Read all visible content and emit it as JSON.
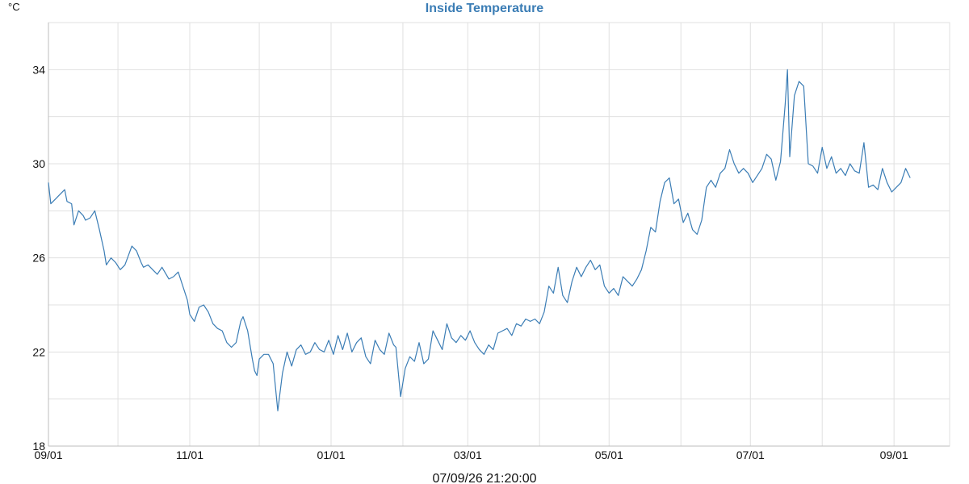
{
  "chart_data": {
    "type": "line",
    "title": "Inside Temperature",
    "ylabel": "°C",
    "footer": "07/09/26 21:20:00",
    "ylim": [
      18,
      36
    ],
    "yticks": [
      18,
      22,
      26,
      30,
      34
    ],
    "xlim": [
      "2006-09-01",
      "2007-09-25"
    ],
    "xticks": [
      {
        "label": "09/01",
        "date": "2006-09-01"
      },
      {
        "label": "11/01",
        "date": "2006-11-01"
      },
      {
        "label": "01/01",
        "date": "2007-01-01"
      },
      {
        "label": "03/01",
        "date": "2007-03-01"
      },
      {
        "label": "05/01",
        "date": "2007-05-01"
      },
      {
        "label": "07/01",
        "date": "2007-07-01"
      },
      {
        "label": "09/01",
        "date": "2007-09-01"
      }
    ],
    "grid": true,
    "colors": {
      "line": "#3b7db5",
      "title": "#3b7db5",
      "grid": "#e0e0e0"
    },
    "series": [
      {
        "x": [
          "2006-09-01",
          "2006-09-02",
          "2006-09-04",
          "2006-09-06",
          "2006-09-08",
          "2006-09-09",
          "2006-09-11",
          "2006-09-12",
          "2006-09-14",
          "2006-09-16",
          "2006-09-17",
          "2006-09-19",
          "2006-09-21",
          "2006-09-23",
          "2006-09-25",
          "2006-09-26",
          "2006-09-28",
          "2006-09-30",
          "2006-10-02",
          "2006-10-04",
          "2006-10-07",
          "2006-10-09",
          "2006-10-11",
          "2006-10-12",
          "2006-10-14",
          "2006-10-16",
          "2006-10-18",
          "2006-10-20",
          "2006-10-23",
          "2006-10-25",
          "2006-10-27",
          "2006-10-29",
          "2006-10-31",
          "2006-11-01",
          "2006-11-03",
          "2006-11-05",
          "2006-11-07",
          "2006-11-09",
          "2006-11-11",
          "2006-11-13",
          "2006-11-15",
          "2006-11-17",
          "2006-11-19",
          "2006-11-21",
          "2006-11-23",
          "2006-11-24",
          "2006-11-26",
          "2006-11-28",
          "2006-11-29",
          "2006-11-30",
          "2006-12-01",
          "2006-12-03",
          "2006-12-05",
          "2006-12-07",
          "2006-12-09",
          "2006-12-11",
          "2006-12-13",
          "2006-12-15",
          "2006-12-17",
          "2006-12-19",
          "2006-12-21",
          "2006-12-23",
          "2006-12-25",
          "2006-12-27",
          "2006-12-29",
          "2006-12-31",
          "2007-01-02",
          "2007-01-04",
          "2007-01-06",
          "2007-01-08",
          "2007-01-10",
          "2007-01-12",
          "2007-01-14",
          "2007-01-16",
          "2007-01-18",
          "2007-01-20",
          "2007-01-22",
          "2007-01-24",
          "2007-01-26",
          "2007-01-28",
          "2007-01-29",
          "2007-01-31",
          "2007-02-02",
          "2007-02-04",
          "2007-02-06",
          "2007-02-08",
          "2007-02-10",
          "2007-02-12",
          "2007-02-14",
          "2007-02-16",
          "2007-02-18",
          "2007-02-20",
          "2007-02-22",
          "2007-02-24",
          "2007-02-26",
          "2007-02-28",
          "2007-03-02",
          "2007-03-04",
          "2007-03-06",
          "2007-03-08",
          "2007-03-10",
          "2007-03-12",
          "2007-03-14",
          "2007-03-16",
          "2007-03-18",
          "2007-03-20",
          "2007-03-22",
          "2007-03-24",
          "2007-03-26",
          "2007-03-28",
          "2007-03-30",
          "2007-04-01",
          "2007-04-03",
          "2007-04-05",
          "2007-04-07",
          "2007-04-09",
          "2007-04-11",
          "2007-04-13",
          "2007-04-15",
          "2007-04-17",
          "2007-04-19",
          "2007-04-21",
          "2007-04-23",
          "2007-04-25",
          "2007-04-27",
          "2007-04-29",
          "2007-05-01",
          "2007-05-03",
          "2007-05-05",
          "2007-05-07",
          "2007-05-09",
          "2007-05-11",
          "2007-05-13",
          "2007-05-15",
          "2007-05-17",
          "2007-05-19",
          "2007-05-21",
          "2007-05-23",
          "2007-05-25",
          "2007-05-27",
          "2007-05-29",
          "2007-05-31",
          "2007-06-02",
          "2007-06-04",
          "2007-06-06",
          "2007-06-08",
          "2007-06-10",
          "2007-06-12",
          "2007-06-14",
          "2007-06-16",
          "2007-06-18",
          "2007-06-20",
          "2007-06-22",
          "2007-06-24",
          "2007-06-26",
          "2007-06-28",
          "2007-06-30",
          "2007-07-02",
          "2007-07-04",
          "2007-07-06",
          "2007-07-08",
          "2007-07-10",
          "2007-07-12",
          "2007-07-14",
          "2007-07-16",
          "2007-07-17",
          "2007-07-18",
          "2007-07-20",
          "2007-07-22",
          "2007-07-24",
          "2007-07-26",
          "2007-07-28",
          "2007-07-30",
          "2007-08-01",
          "2007-08-03",
          "2007-08-05",
          "2007-08-07",
          "2007-08-09",
          "2007-08-11",
          "2007-08-13",
          "2007-08-15",
          "2007-08-17",
          "2007-08-19",
          "2007-08-21",
          "2007-08-23",
          "2007-08-25",
          "2007-08-27",
          "2007-08-29",
          "2007-08-31",
          "2007-09-02",
          "2007-09-04",
          "2007-09-06",
          "2007-09-08"
        ],
        "y": [
          29.2,
          28.3,
          28.5,
          28.7,
          28.9,
          28.4,
          28.3,
          27.4,
          28.0,
          27.8,
          27.6,
          27.7,
          28.0,
          27.2,
          26.3,
          25.7,
          26.0,
          25.8,
          25.5,
          25.7,
          26.5,
          26.3,
          25.8,
          25.6,
          25.7,
          25.5,
          25.3,
          25.6,
          25.1,
          25.2,
          25.4,
          24.8,
          24.2,
          23.6,
          23.3,
          23.9,
          24.0,
          23.7,
          23.2,
          23.0,
          22.9,
          22.4,
          22.2,
          22.4,
          23.3,
          23.5,
          22.9,
          21.7,
          21.2,
          21.0,
          21.7,
          21.9,
          21.9,
          21.5,
          19.5,
          21.1,
          22.0,
          21.4,
          22.1,
          22.3,
          21.9,
          22.0,
          22.4,
          22.1,
          22.0,
          22.5,
          21.9,
          22.7,
          22.1,
          22.8,
          22.0,
          22.4,
          22.6,
          21.8,
          21.5,
          22.5,
          22.1,
          21.9,
          22.8,
          22.3,
          22.2,
          20.1,
          21.3,
          21.8,
          21.6,
          22.4,
          21.5,
          21.7,
          22.9,
          22.5,
          22.1,
          23.2,
          22.6,
          22.4,
          22.7,
          22.5,
          22.9,
          22.4,
          22.1,
          21.9,
          22.3,
          22.1,
          22.8,
          22.9,
          23.0,
          22.7,
          23.2,
          23.1,
          23.4,
          23.3,
          23.4,
          23.2,
          23.7,
          24.8,
          24.5,
          25.6,
          24.4,
          24.1,
          25.0,
          25.6,
          25.2,
          25.6,
          25.9,
          25.5,
          25.7,
          24.8,
          24.5,
          24.7,
          24.4,
          25.2,
          25.0,
          24.8,
          25.1,
          25.5,
          26.3,
          27.3,
          27.1,
          28.4,
          29.2,
          29.4,
          28.3,
          28.5,
          27.5,
          27.9,
          27.2,
          27.0,
          27.6,
          29.0,
          29.3,
          29.0,
          29.6,
          29.8,
          30.6,
          30.0,
          29.6,
          29.8,
          29.6,
          29.2,
          29.5,
          29.8,
          30.4,
          30.2,
          29.3,
          30.1,
          32.5,
          34.0,
          30.3,
          32.9,
          33.5,
          33.3,
          30.0,
          29.9,
          29.6,
          30.7,
          29.8,
          30.3,
          29.6,
          29.8,
          29.5,
          30.0,
          29.7,
          29.6,
          30.9,
          29.0,
          29.1,
          28.9,
          29.8,
          29.2,
          28.8,
          29.0,
          29.2,
          29.8,
          29.4
        ]
      }
    ]
  }
}
